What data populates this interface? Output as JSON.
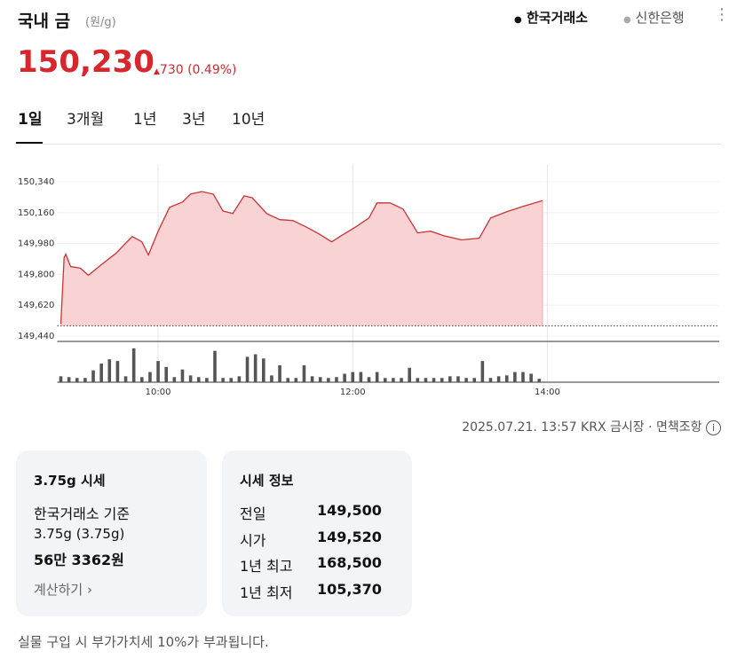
{
  "header": {
    "title": "국내 금",
    "unit": "(원/g)",
    "sources": [
      "한국거래소",
      "신한은행"
    ],
    "price": "150,230",
    "change": "730 (0.49%)"
  },
  "tabs": [
    "1일",
    "3개월",
    "1년",
    "3년",
    "10년"
  ],
  "chart_data": {
    "type": "area",
    "x": [
      "09:00",
      "09:02",
      "09:03",
      "09:06",
      "09:12",
      "09:17",
      "09:25",
      "09:34",
      "09:44",
      "09:50",
      "09:54",
      "10:00",
      "10:07",
      "10:15",
      "10:20",
      "10:27",
      "10:34",
      "10:40",
      "10:46",
      "10:53",
      "10:58",
      "11:07",
      "11:15",
      "11:23",
      "11:31",
      "11:39",
      "11:47",
      "11:53",
      "12:02",
      "12:10",
      "12:15",
      "12:23",
      "12:31",
      "12:40",
      "12:48",
      "12:56",
      "13:07",
      "13:18",
      "13:25",
      "13:35",
      "13:45",
      "13:57"
    ],
    "series": [
      {
        "name": "국내 금",
        "color": "#cc3333",
        "fill": "#f9d3d3",
        "values": [
          149510,
          149898,
          149918,
          149846,
          149836,
          149795,
          149857,
          149923,
          150021,
          149990,
          149913,
          150052,
          150191,
          150222,
          150268,
          150283,
          150268,
          150170,
          150155,
          150258,
          150247,
          150155,
          150119,
          150114,
          150078,
          150037,
          149990,
          150026,
          150078,
          150129,
          150217,
          150217,
          150181,
          150042,
          150052,
          150026,
          150001,
          150011,
          150129,
          150165,
          150196,
          150230
        ]
      }
    ],
    "baseline": 149500,
    "xlim": [
      "09:00",
      "15:46"
    ],
    "xticks": [
      "10:00",
      "12:00",
      "14:00"
    ],
    "ylim": [
      149440,
      150340
    ],
    "yticks": [
      {
        "value": 149440,
        "label": "149,440"
      },
      {
        "value": 149620,
        "label": "149,620"
      },
      {
        "value": 149800,
        "label": "149,800"
      },
      {
        "value": 149980,
        "label": "149,980"
      },
      {
        "value": 150160,
        "label": "150,160"
      },
      {
        "value": 150340,
        "label": "150,340"
      }
    ],
    "grid": true,
    "volume": {
      "color": "#555555",
      "x": [
        "09:00",
        "09:05",
        "09:10",
        "09:15",
        "09:20",
        "09:25",
        "09:30",
        "09:35",
        "09:40",
        "09:45",
        "09:50",
        "09:55",
        "10:00",
        "10:05",
        "10:10",
        "10:15",
        "10:20",
        "10:25",
        "10:30",
        "10:35",
        "10:40",
        "10:45",
        "10:50",
        "10:55",
        "11:00",
        "11:05",
        "11:10",
        "11:15",
        "11:20",
        "11:25",
        "11:30",
        "11:35",
        "11:40",
        "11:45",
        "11:50",
        "11:55",
        "12:00",
        "12:05",
        "12:10",
        "12:15",
        "12:20",
        "12:25",
        "12:30",
        "12:35",
        "12:40",
        "12:45",
        "12:50",
        "12:55",
        "13:00",
        "13:05",
        "13:10",
        "13:15",
        "13:20",
        "13:25",
        "13:30",
        "13:35",
        "13:40",
        "13:45",
        "13:50",
        "13:55"
      ],
      "values": [
        7,
        6,
        5,
        5,
        14,
        22,
        27,
        25,
        7,
        40,
        6,
        12,
        25,
        18,
        6,
        15,
        8,
        6,
        5,
        37,
        5,
        5,
        7,
        30,
        33,
        28,
        8,
        20,
        5,
        5,
        20,
        7,
        6,
        5,
        6,
        10,
        12,
        12,
        6,
        12,
        5,
        5,
        5,
        17,
        5,
        5,
        5,
        5,
        7,
        7,
        5,
        5,
        25,
        5,
        7,
        8,
        12,
        12,
        10,
        4
      ],
      "y2lim": [
        0,
        45
      ]
    }
  },
  "footnote": {
    "updated": "2025.07.21. 13:57 KRX 금시장",
    "disclaimer": "면책조항"
  },
  "cards": [
    {
      "title": "3.75g 시세",
      "lines": [
        "한국거래소 기준",
        "3.75g (3.75g)",
        "56만 3362원"
      ],
      "link": "계산하기"
    },
    {
      "title": "시세 정보",
      "rows": [
        [
          "전일",
          "149,500"
        ],
        [
          "시가",
          "149,520"
        ],
        [
          "1년 최고",
          "168,500"
        ],
        [
          "1년 최저",
          "105,370"
        ]
      ]
    }
  ],
  "notice": "실물 구입 시 부가가치세 10%가 부과됩니다."
}
